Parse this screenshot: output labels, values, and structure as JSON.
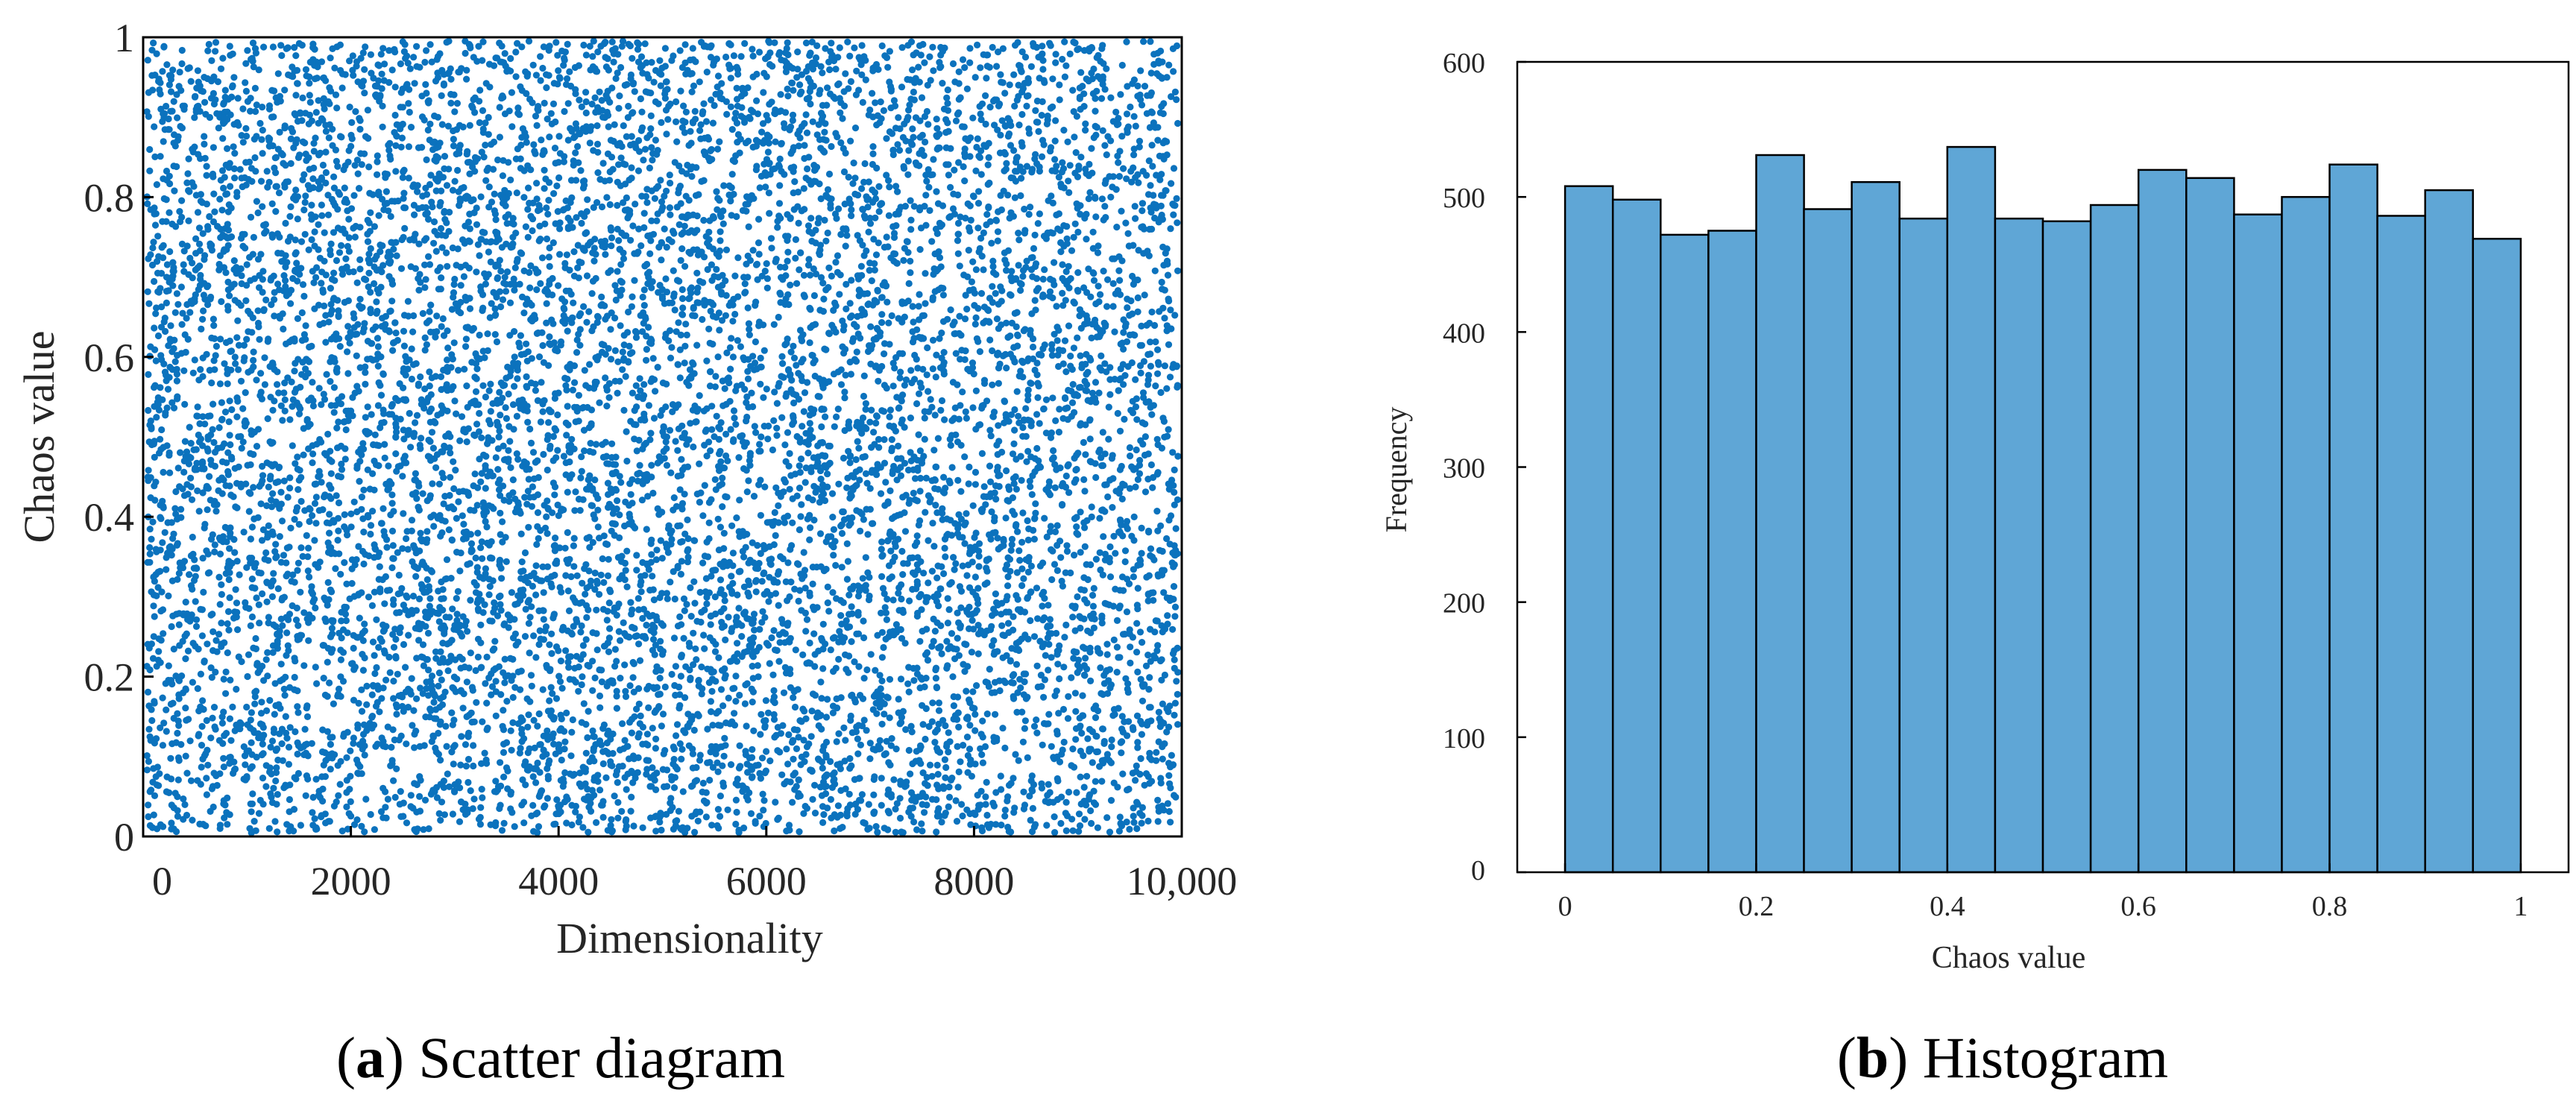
{
  "chart_data": [
    {
      "type": "scatter",
      "title": "",
      "xlabel": "Dimensionality",
      "ylabel": "Chaos value",
      "xlim": [
        0,
        10000
      ],
      "ylim": [
        0,
        1
      ],
      "xticks": [
        0,
        2000,
        4000,
        6000,
        8000,
        10000
      ],
      "xtick_labels": [
        "0",
        "2000",
        "4000",
        "6000",
        "8000",
        "10,000"
      ],
      "yticks": [
        0,
        0.2,
        0.4,
        0.6,
        0.8,
        1
      ],
      "ytick_labels": [
        "0",
        "0.2",
        "0.4",
        "0.6",
        "0.8",
        "1"
      ],
      "num_points": 10000,
      "distribution": "uniform random over [0, 1] (chaotic sequence)",
      "marker_color": "#0b72bd",
      "grid": false,
      "legend": false
    },
    {
      "type": "bar",
      "subtype": "histogram",
      "title": "",
      "xlabel": "Chaos value",
      "ylabel": "Frequency",
      "xlim": [
        -0.05,
        1.05
      ],
      "ylim": [
        0,
        600
      ],
      "xticks": [
        0,
        0.2,
        0.4,
        0.6,
        0.8,
        1
      ],
      "xtick_labels": [
        "0",
        "0.2",
        "0.4",
        "0.6",
        "0.8",
        "1"
      ],
      "yticks": [
        0,
        100,
        200,
        300,
        400,
        500,
        600
      ],
      "ytick_labels": [
        "0",
        "100",
        "200",
        "300",
        "400",
        "500",
        "600"
      ],
      "bin_edges": [
        0,
        0.05,
        0.1,
        0.15,
        0.2,
        0.25,
        0.3,
        0.35,
        0.4,
        0.45,
        0.5,
        0.55,
        0.6,
        0.65,
        0.7,
        0.75,
        0.8,
        0.85,
        0.9,
        0.95,
        1.0
      ],
      "values": [
        508,
        498,
        472,
        475,
        531,
        491,
        511,
        484,
        537,
        484,
        482,
        494,
        520,
        514,
        487,
        500,
        524,
        486,
        505,
        469
      ],
      "bar_color": "#5fa6d6",
      "edge_color": "#000000",
      "grid": false,
      "legend": false
    }
  ],
  "captions": {
    "a": {
      "letter": "a",
      "text": "Scatter diagram"
    },
    "b": {
      "letter": "b",
      "text": "Histogram"
    }
  }
}
